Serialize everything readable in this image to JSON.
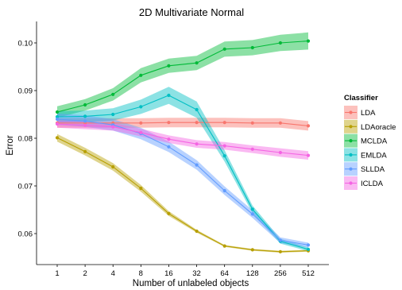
{
  "chart_data": {
    "type": "line",
    "title": "2D Multivariate Normal",
    "xlabel": "Number of unlabeled objects",
    "ylabel": "Error",
    "x": [
      "1",
      "2",
      "4",
      "8",
      "16",
      "32",
      "64",
      "128",
      "256",
      "512"
    ],
    "ylim": [
      0.0535,
      0.1045
    ],
    "yticks": [
      0.06,
      0.07,
      0.08,
      0.09,
      0.1
    ],
    "ytick_labels": [
      "0.06",
      "0.07",
      "0.08",
      "0.09",
      "0.10"
    ],
    "grid": false,
    "legend": {
      "title": "Classifier",
      "position": "right"
    },
    "series": [
      {
        "name": "LDA",
        "color": "#F8766D",
        "values": [
          0.0832,
          0.0832,
          0.0832,
          0.0832,
          0.0833,
          0.0833,
          0.0833,
          0.0832,
          0.0832,
          0.0826
        ],
        "band": [
          0.001,
          0.001,
          0.001,
          0.001,
          0.001,
          0.001,
          0.001,
          0.001,
          0.001,
          0.001
        ]
      },
      {
        "name": "LDAoracle",
        "color": "#B79F00",
        "values": [
          0.0801,
          0.0772,
          0.074,
          0.0695,
          0.0642,
          0.0605,
          0.0574,
          0.0566,
          0.0562,
          0.0564
        ],
        "band": [
          0.0008,
          0.0008,
          0.0008,
          0.0007,
          0.0005,
          0.0003,
          0.0002,
          0.0002,
          0.0002,
          0.0002
        ]
      },
      {
        "name": "MCLDA",
        "color": "#00BA38",
        "values": [
          0.0855,
          0.087,
          0.0892,
          0.0932,
          0.0952,
          0.0958,
          0.0987,
          0.099,
          0.1,
          0.1004
        ],
        "band": [
          0.0012,
          0.0012,
          0.0013,
          0.0015,
          0.0015,
          0.0015,
          0.0016,
          0.0016,
          0.0017,
          0.0018
        ]
      },
      {
        "name": "EMLDA",
        "color": "#00BFC4",
        "values": [
          0.0845,
          0.0846,
          0.085,
          0.0866,
          0.089,
          0.086,
          0.0763,
          0.0651,
          0.0584,
          0.0567
        ],
        "band": [
          0.0012,
          0.0012,
          0.0013,
          0.0015,
          0.0018,
          0.0017,
          0.0012,
          0.0008,
          0.0005,
          0.0004
        ]
      },
      {
        "name": "SLLDA",
        "color": "#619CFF",
        "values": [
          0.084,
          0.0836,
          0.0828,
          0.081,
          0.0782,
          0.0744,
          0.069,
          0.0641,
          0.0586,
          0.0576
        ],
        "band": [
          0.0012,
          0.0012,
          0.0012,
          0.0012,
          0.0011,
          0.001,
          0.0009,
          0.0008,
          0.0006,
          0.0005
        ]
      },
      {
        "name": "ICLDA",
        "color": "#F564E3",
        "values": [
          0.083,
          0.0827,
          0.0824,
          0.0812,
          0.0798,
          0.0788,
          0.0784,
          0.0777,
          0.077,
          0.0764
        ],
        "band": [
          0.0008,
          0.0008,
          0.0008,
          0.0008,
          0.0008,
          0.0008,
          0.0008,
          0.0008,
          0.0009,
          0.0009
        ]
      }
    ]
  }
}
